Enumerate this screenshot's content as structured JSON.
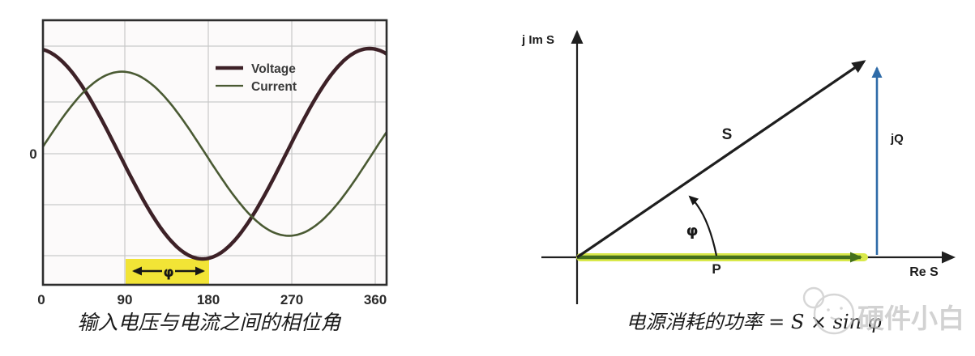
{
  "figure": {
    "background": "#ffffff"
  },
  "chart_data": [
    {
      "type": "line",
      "title": "输入电压与电流之间的相位角",
      "waveform": "sine",
      "x_range": [
        0,
        360
      ],
      "x_ticks": [
        "0",
        "90",
        "180",
        "270",
        "360"
      ],
      "y_zero_label": "0",
      "grid": true,
      "legend_position": "top-center",
      "series": [
        {
          "name": "Voltage",
          "color": "#3d2127",
          "width": 4.5,
          "amplitude": 1.0,
          "phase_deg": 97
        },
        {
          "name": "Current",
          "color": "#4a5a33",
          "width": 2.6,
          "amplitude": 0.78,
          "phase_deg": 4
        }
      ],
      "phase_highlight": {
        "from": 90,
        "to": 180,
        "label": "φ",
        "band_color": "#f2e436"
      }
    },
    {
      "type": "vector-diagram",
      "title": "电源消耗的功率 = S × sin φ",
      "x_axis_label": "Re S",
      "y_axis_label": "j Im S",
      "angle_label": "φ",
      "angle_deg": 34,
      "vectors": [
        {
          "name": "S",
          "color": "#1e1e1e"
        },
        {
          "name": "P",
          "color": "#44701c",
          "highlight_color": "#d9e94b"
        },
        {
          "name": "jQ",
          "color": "#2e6ba8"
        }
      ]
    }
  ],
  "watermark": {
    "text": "硬件小白",
    "logo": "chick-face-logo",
    "color": "#c4c4c4"
  }
}
